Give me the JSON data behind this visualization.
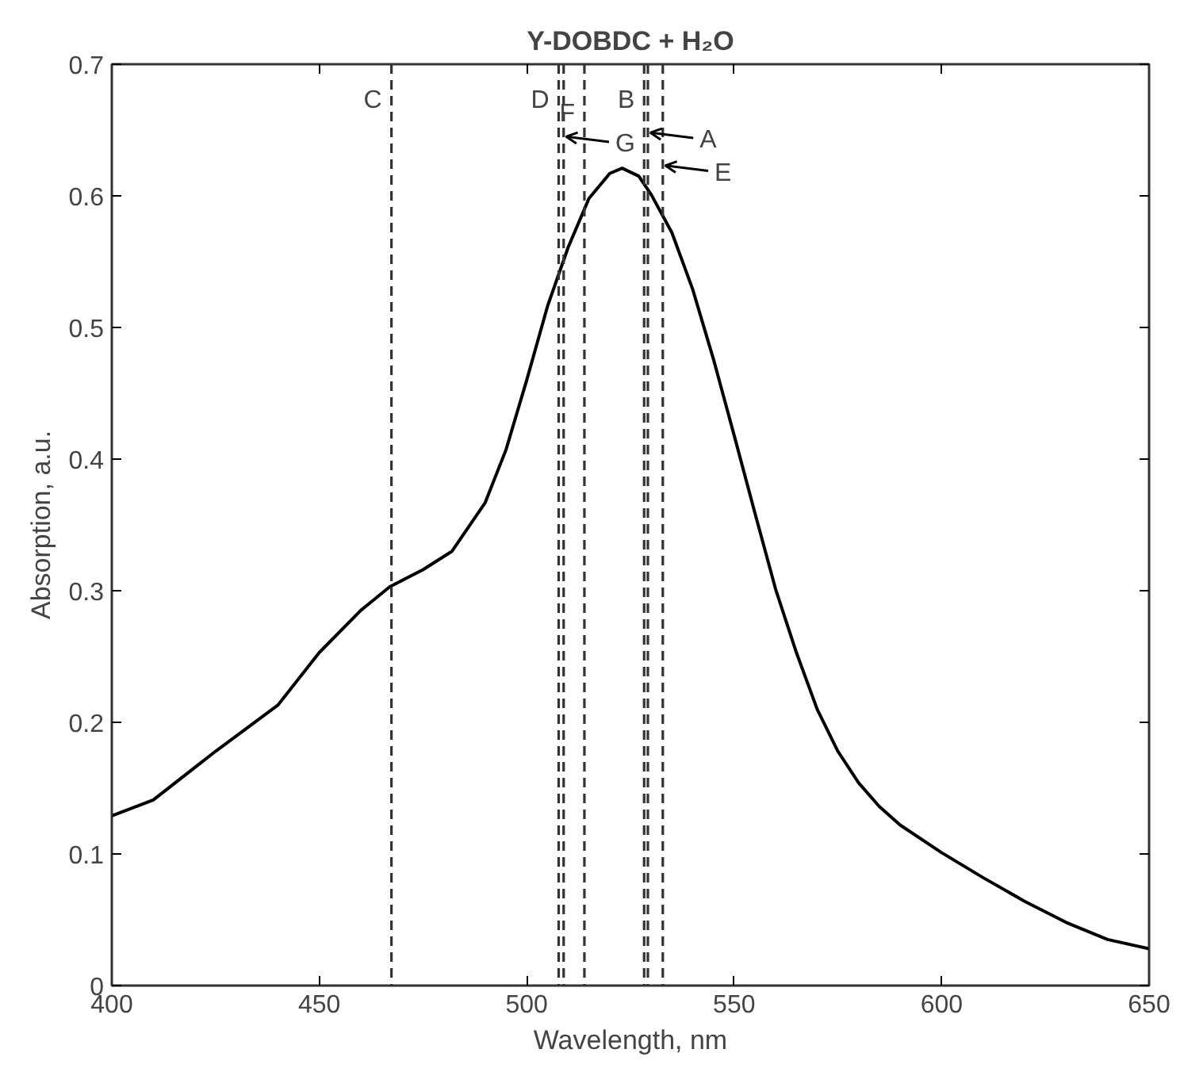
{
  "chart_data": {
    "type": "line",
    "title": "Y-DOBDC + H₂O",
    "xlabel": "Wavelength, nm",
    "ylabel": "Absorption, a.u.",
    "x": [
      400,
      410,
      425,
      440,
      450,
      460,
      467,
      475,
      482,
      490,
      495,
      500,
      505,
      510,
      515,
      520,
      523,
      527,
      530,
      535,
      540,
      545,
      550,
      555,
      560,
      565,
      570,
      575,
      580,
      585,
      590,
      600,
      610,
      620,
      630,
      640,
      650
    ],
    "series": [
      {
        "color": "#000000",
        "values": [
          0.129,
          0.141,
          0.178,
          0.213,
          0.253,
          0.285,
          0.303,
          0.316,
          0.33,
          0.367,
          0.407,
          0.46,
          0.516,
          0.561,
          0.598,
          0.617,
          0.621,
          0.615,
          0.601,
          0.572,
          0.529,
          0.476,
          0.418,
          0.359,
          0.301,
          0.253,
          0.21,
          0.178,
          0.154,
          0.136,
          0.122,
          0.101,
          0.082,
          0.064,
          0.048,
          0.035,
          0.028
        ]
      }
    ],
    "xlim": [
      400,
      650
    ],
    "xticks": [
      400,
      450,
      500,
      550,
      600,
      650
    ],
    "ylim": [
      0,
      0.7
    ],
    "yticks": [
      0,
      0.1,
      0.2,
      0.3,
      0.4,
      0.5,
      0.6,
      0.7
    ],
    "ref_lines": [
      {
        "axis": "x",
        "value": 467.4,
        "line_style": "dashed",
        "color": "#333333"
      },
      {
        "axis": "x",
        "value": 507.7,
        "line_style": "dashed",
        "color": "#333333"
      },
      {
        "axis": "x",
        "value": 508.9,
        "line_style": "dashed",
        "color": "#333333"
      },
      {
        "axis": "x",
        "value": 513.9,
        "line_style": "dashed",
        "color": "#333333"
      },
      {
        "axis": "x",
        "value": 528.3,
        "line_style": "dashed",
        "color": "#333333"
      },
      {
        "axis": "x",
        "value": 529.2,
        "line_style": "dashed",
        "color": "#333333"
      },
      {
        "axis": "x",
        "value": 532.8,
        "line_style": "dashed",
        "color": "#333333"
      }
    ],
    "annotations": [
      {
        "text": "C",
        "x": 467.4,
        "y": 0.672
      },
      {
        "text": "D",
        "x": 507.7,
        "y": 0.672
      },
      {
        "text": "F",
        "x": 513.9,
        "y": 0.662
      },
      {
        "text": "B",
        "x": 528.3,
        "y": 0.672
      },
      {
        "text": "A",
        "x": 529.2,
        "y": 0.648
      },
      {
        "text": "G",
        "x": 508.9,
        "y": 0.645
      },
      {
        "text": "E",
        "x": 532.8,
        "y": 0.623
      }
    ],
    "grid": false,
    "marker": "none",
    "line_style": "solid"
  }
}
